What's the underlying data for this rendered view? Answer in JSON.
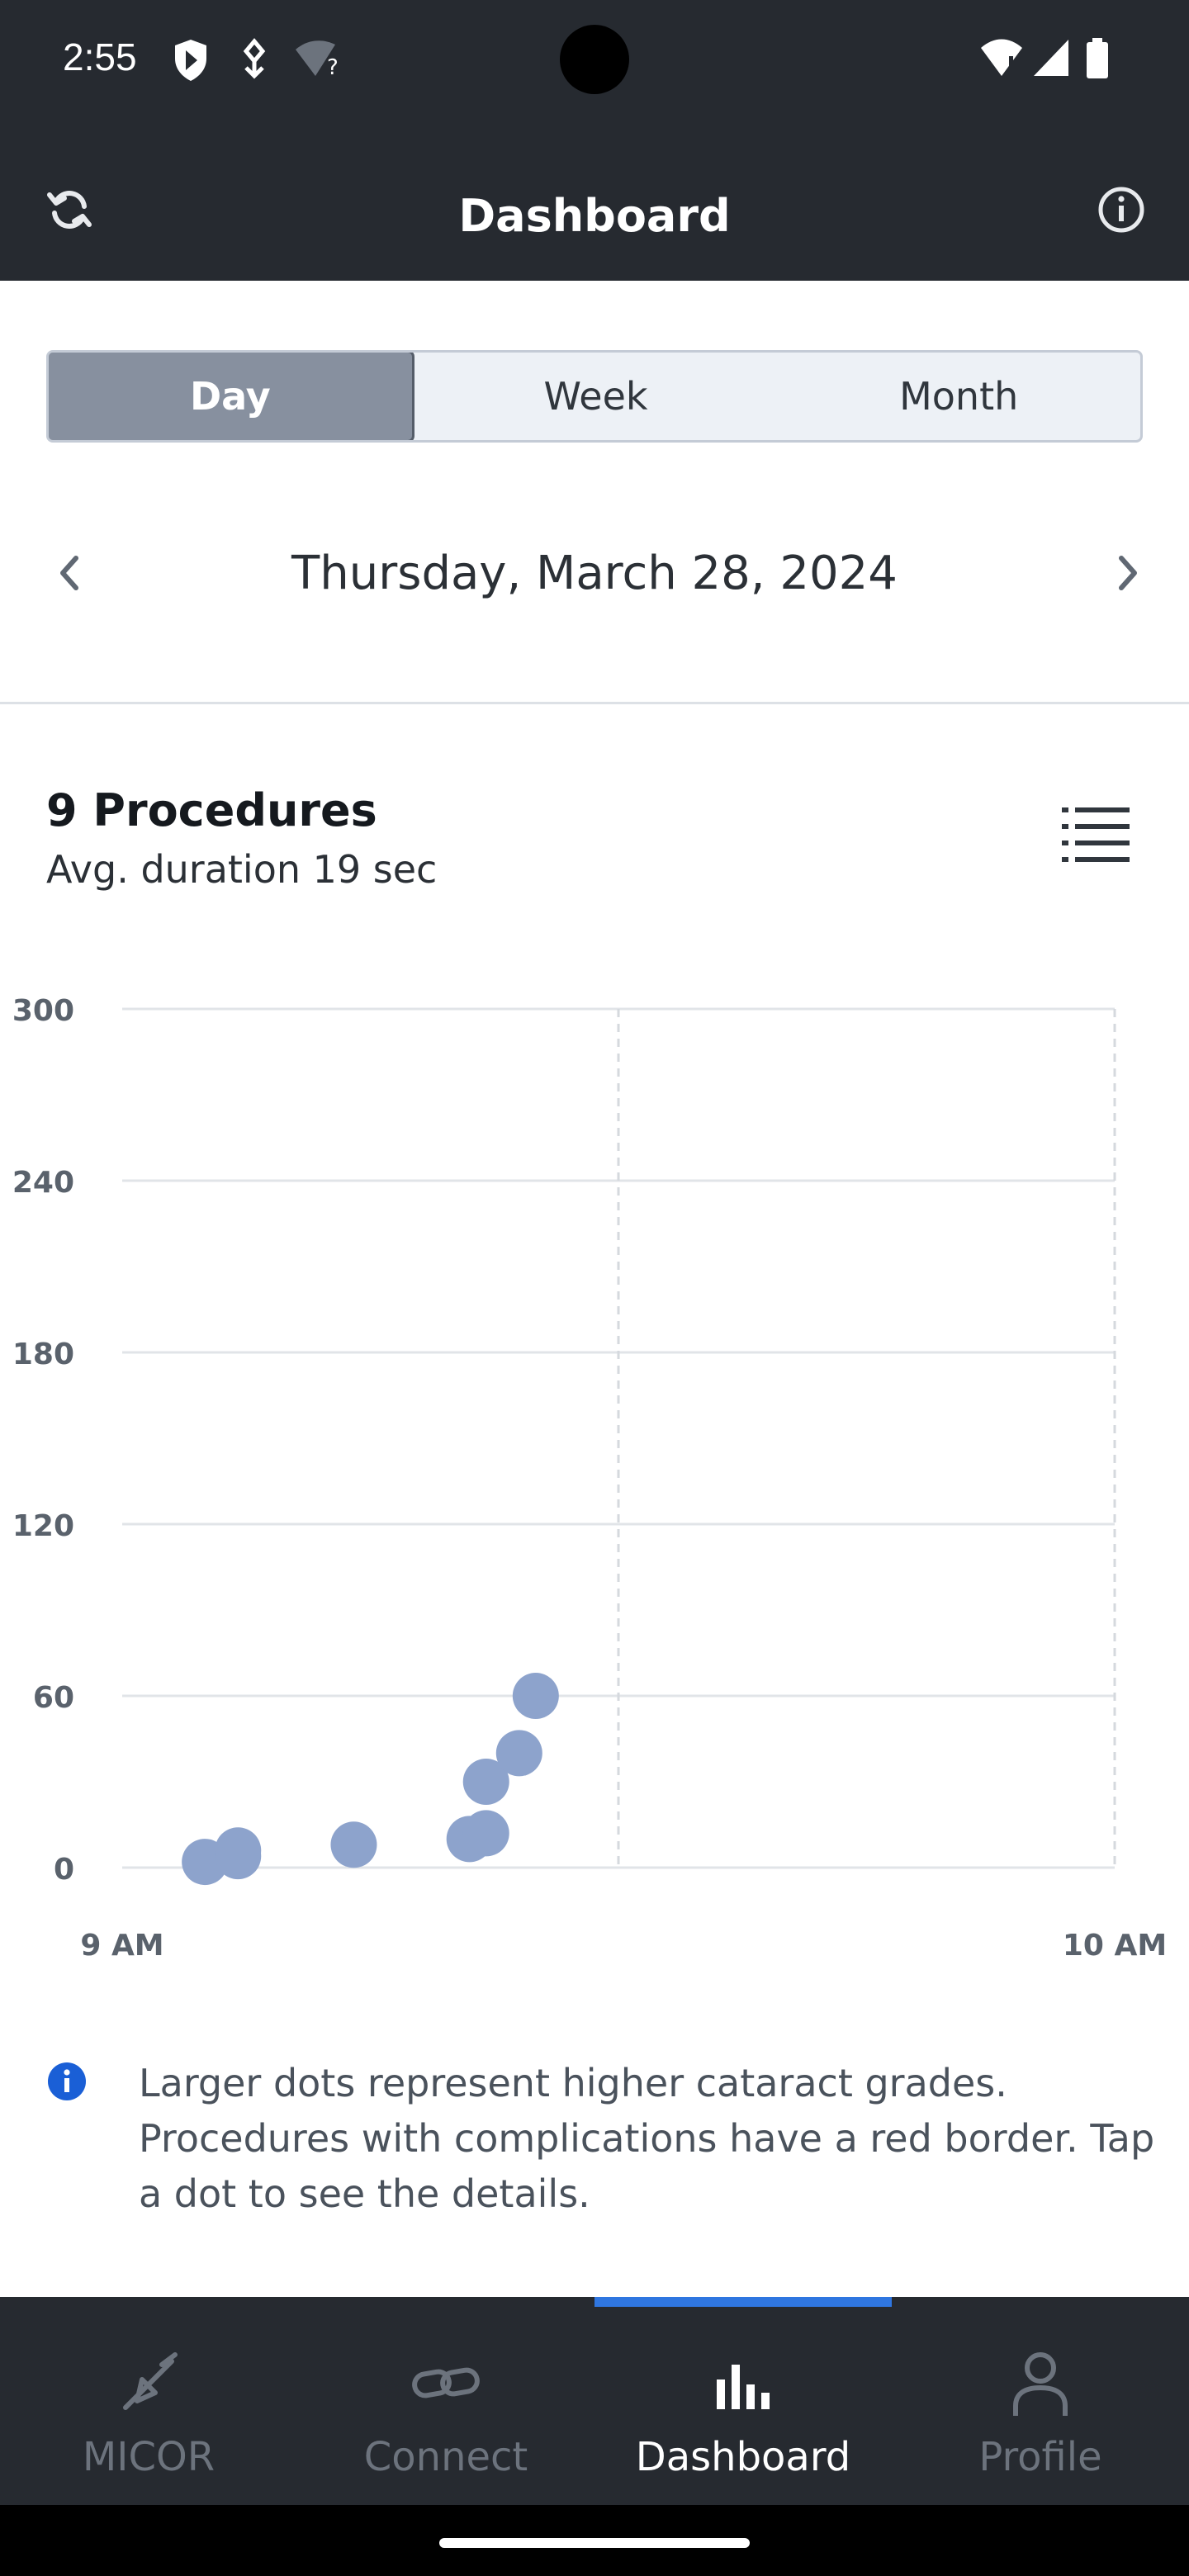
{
  "status_bar": {
    "time": "2:55",
    "icons": [
      "shield-icon",
      "usb-debug-icon",
      "wifi-question-icon",
      "wifi-icon",
      "signal-icon",
      "battery-icon"
    ]
  },
  "app_bar": {
    "title": "Dashboard",
    "left_icon": "refresh-icon",
    "right_icon": "info-icon"
  },
  "period_selector": {
    "options": [
      "Day",
      "Week",
      "Month"
    ],
    "selected": "Day"
  },
  "date_nav": {
    "date": "Thursday, March 28, 2024"
  },
  "summary": {
    "title": "9 Procedures",
    "subtitle": "Avg. duration 19 sec",
    "list_icon": "list-icon"
  },
  "chart_data": {
    "type": "scatter",
    "x_tick_labels": [
      "9 AM",
      "10 AM"
    ],
    "y_ticks": [
      0,
      60,
      120,
      180,
      240,
      300
    ],
    "xlim": [
      0,
      60
    ],
    "ylim": [
      0,
      300
    ],
    "point_color": "#8da3cc",
    "points": [
      {
        "x": 5,
        "y": 2
      },
      {
        "x": 7,
        "y": 4
      },
      {
        "x": 7,
        "y": 6
      },
      {
        "x": 14,
        "y": 8
      },
      {
        "x": 21,
        "y": 10
      },
      {
        "x": 22,
        "y": 12
      },
      {
        "x": 22,
        "y": 30
      },
      {
        "x": 24,
        "y": 40
      },
      {
        "x": 25,
        "y": 60
      }
    ]
  },
  "legend": {
    "text": "Larger dots represent higher cataract grades. Procedures with complications have a red border. Tap a dot to see the details."
  },
  "bottom_nav": {
    "items": [
      {
        "label": "MICOR",
        "icon": "micor-icon"
      },
      {
        "label": "Connect",
        "icon": "link-icon"
      },
      {
        "label": "Dashboard",
        "icon": "bar-chart-icon"
      },
      {
        "label": "Profile",
        "icon": "person-icon"
      }
    ],
    "active": "Dashboard",
    "accent_color": "#2f76e0"
  }
}
